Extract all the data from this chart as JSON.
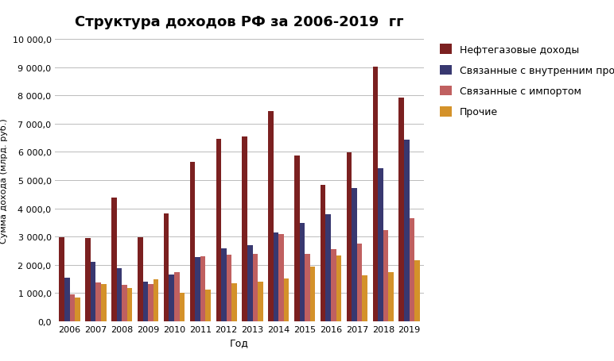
{
  "title": "Структура доходов РФ за 2006-2019  гг",
  "xlabel": "Год",
  "ylabel": "Сумма дохода (млрд. руб.)",
  "years": [
    2006,
    2007,
    2008,
    2009,
    2010,
    2011,
    2012,
    2013,
    2014,
    2015,
    2016,
    2017,
    2018,
    2019
  ],
  "series": {
    "Нефтегазовые доходы": [
      2962,
      2943,
      4389,
      2984,
      3831,
      5642,
      6453,
      6534,
      7433,
      5863,
      4844,
      5972,
      9018,
      7924
    ],
    "Связанные с внутренним производством": [
      1530,
      2117,
      1868,
      1396,
      1660,
      2279,
      2569,
      2700,
      3131,
      3486,
      3786,
      4724,
      5418,
      6432
    ],
    "Связанные с импортом": [
      963,
      1365,
      1299,
      1310,
      1749,
      2293,
      2360,
      2398,
      3100,
      2378,
      2564,
      2739,
      3220,
      3662
    ],
    "Прочие": [
      826,
      1330,
      1190,
      1490,
      1011,
      1126,
      1345,
      1395,
      1500,
      1940,
      2330,
      1625,
      1750,
      2150
    ]
  },
  "colors": {
    "Нефтегазовые доходы": "#7B2020",
    "Связанные с внутренним производством": "#383870",
    "Связанные с импортом": "#C06060",
    "Прочие": "#D4922A"
  },
  "ylim": [
    0,
    10000
  ],
  "yticks": [
    0,
    1000,
    2000,
    3000,
    4000,
    5000,
    6000,
    7000,
    8000,
    9000,
    10000
  ],
  "background_color": "#FFFFFF",
  "grid_color": "#BBBBBB",
  "bar_width": 0.2,
  "legend_labelspacing": 1.0,
  "title_fontsize": 13,
  "axis_fontsize": 9,
  "tick_fontsize": 8,
  "legend_fontsize": 9
}
